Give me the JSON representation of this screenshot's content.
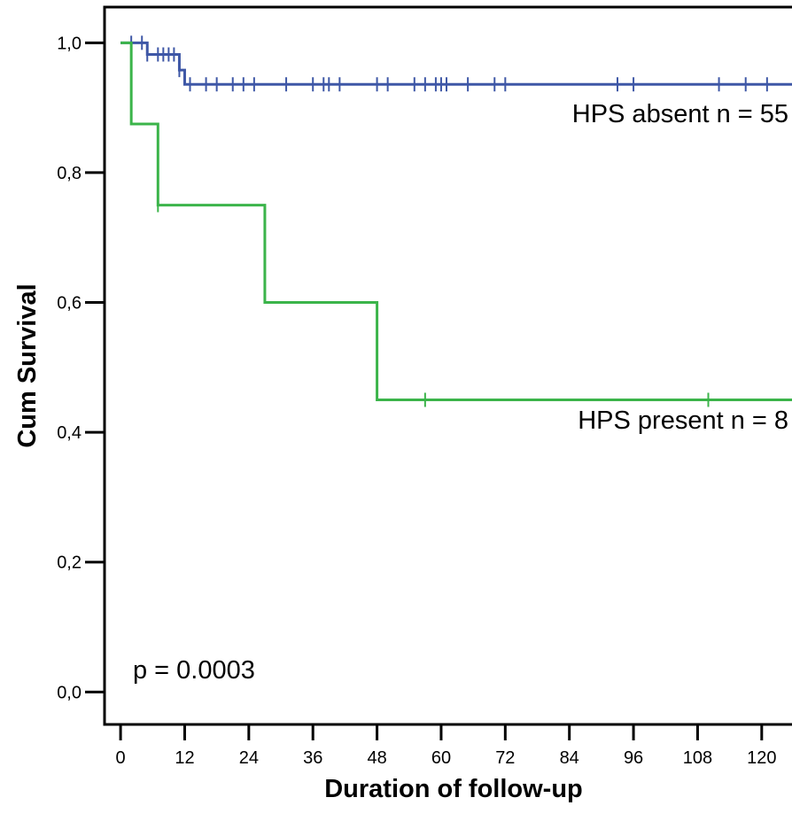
{
  "chart_data": {
    "type": "line",
    "subtype": "kaplan-meier-step",
    "title": "",
    "xlabel": "Duration of follow-up",
    "ylabel": "Cum Survival",
    "xlim": [
      -3,
      126
    ],
    "ylim": [
      -0.05,
      1.055
    ],
    "x_ticks": [
      0,
      12,
      24,
      36,
      48,
      60,
      72,
      84,
      96,
      108,
      120
    ],
    "x_tick_labels": [
      "0",
      "12",
      "24",
      "36",
      "48",
      "60",
      "72",
      "84",
      "96",
      "108",
      "120"
    ],
    "y_ticks": [
      0.0,
      0.2,
      0.4,
      0.6,
      0.8,
      1.0
    ],
    "y_tick_labels": [
      "0,0",
      "0,2",
      "0,4",
      "0,6",
      "0,8",
      "1,0"
    ],
    "grid": false,
    "annotations": [
      {
        "text": "p = 0.0003"
      }
    ],
    "series": [
      {
        "name": "HPS absent n = 55",
        "color": "#3e57a6",
        "steps": [
          {
            "x": 0,
            "y": 1.0
          },
          {
            "x": 5,
            "y": 0.982
          },
          {
            "x": 11,
            "y": 0.958
          },
          {
            "x": 12,
            "y": 0.936
          },
          {
            "x": 126,
            "y": 0.936
          }
        ],
        "censored_x": [
          2,
          4,
          5,
          7,
          8,
          9,
          10,
          11,
          13,
          16,
          18,
          21,
          23,
          25,
          31,
          36,
          38,
          39,
          41,
          48,
          50,
          55,
          57,
          59,
          60,
          61,
          65,
          70,
          72,
          93,
          96,
          112,
          117,
          121
        ]
      },
      {
        "name": "HPS present n = 8",
        "color": "#3bb44a",
        "steps": [
          {
            "x": 0,
            "y": 1.0
          },
          {
            "x": 2,
            "y": 0.875
          },
          {
            "x": 7,
            "y": 0.75
          },
          {
            "x": 27,
            "y": 0.6
          },
          {
            "x": 48,
            "y": 0.45
          },
          {
            "x": 126,
            "y": 0.45
          }
        ],
        "censored_x": [
          7,
          57,
          110
        ]
      }
    ]
  }
}
